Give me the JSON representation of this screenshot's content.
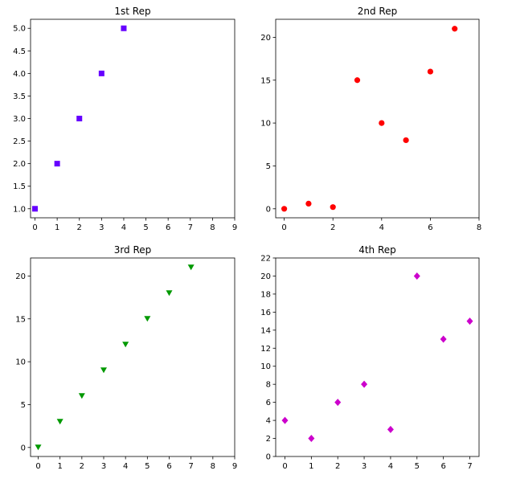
{
  "chart_data": [
    {
      "type": "scatter",
      "title": "1st Rep",
      "xlim": [
        -0.2,
        9
      ],
      "ylim": [
        0.8,
        5.2
      ],
      "xticks": [
        0,
        1,
        2,
        3,
        4,
        5,
        6,
        7,
        8,
        9
      ],
      "yticks": [
        1.0,
        1.5,
        2.0,
        2.5,
        3.0,
        3.5,
        4.0,
        4.5,
        5.0
      ],
      "ytick_decimals": 1,
      "marker": "square",
      "color": "#6600ff",
      "x": [
        0,
        1,
        2,
        3,
        4
      ],
      "y": [
        1,
        2,
        3,
        4,
        5
      ]
    },
    {
      "type": "scatter",
      "title": "2nd Rep",
      "xlim": [
        -0.35,
        8
      ],
      "ylim": [
        -1.05,
        22.1
      ],
      "xticks": [
        0,
        2,
        4,
        6,
        8
      ],
      "yticks": [
        0,
        5,
        10,
        15,
        20
      ],
      "ytick_decimals": 0,
      "marker": "circle",
      "color": "#ff0000",
      "x": [
        0,
        1,
        2,
        3,
        4,
        5,
        6,
        7
      ],
      "y": [
        0,
        0.6,
        0.2,
        15,
        10,
        8,
        16,
        21
      ]
    },
    {
      "type": "scatter",
      "title": "3rd Rep",
      "xlim": [
        -0.35,
        9
      ],
      "ylim": [
        -1.05,
        22.1
      ],
      "xticks": [
        0,
        1,
        2,
        3,
        4,
        5,
        6,
        7,
        8,
        9
      ],
      "yticks": [
        0,
        5,
        10,
        15,
        20
      ],
      "ytick_decimals": 0,
      "marker": "triangle-down",
      "color": "#009900",
      "x": [
        0,
        1,
        2,
        3,
        4,
        5,
        6,
        7
      ],
      "y": [
        0,
        3,
        6,
        9,
        12,
        15,
        18,
        21
      ]
    },
    {
      "type": "scatter",
      "title": "4th Rep",
      "xlim": [
        -0.35,
        7.35
      ],
      "ylim": [
        0,
        22
      ],
      "xticks": [
        0,
        1,
        2,
        3,
        4,
        5,
        6,
        7
      ],
      "yticks": [
        0,
        2,
        4,
        6,
        8,
        10,
        12,
        14,
        16,
        18,
        20,
        22
      ],
      "ytick_decimals": 0,
      "marker": "diamond",
      "color": "#cc00cc",
      "x": [
        0,
        1,
        2,
        3,
        4,
        5,
        6,
        7
      ],
      "y": [
        4,
        2,
        6,
        8,
        3,
        20,
        13,
        15
      ]
    }
  ]
}
